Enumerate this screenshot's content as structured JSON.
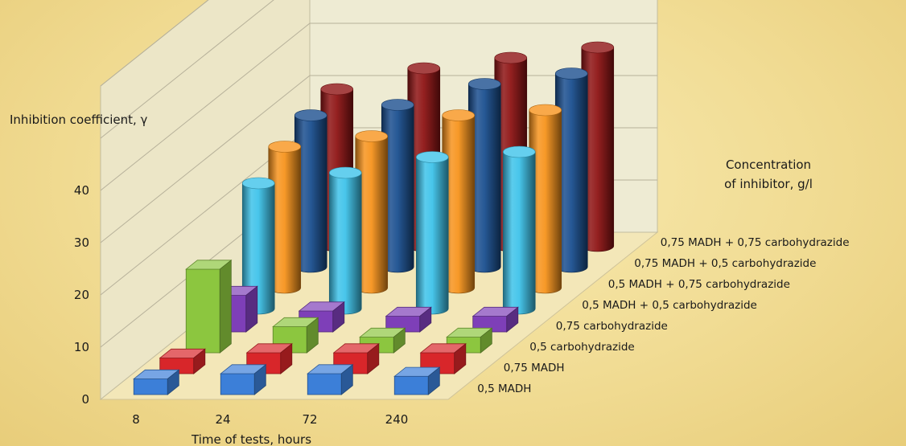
{
  "chart_data": {
    "type": "bar3d",
    "ylabel": "Inhibition coefficient, γ",
    "xlabel": "Time of tests, hours",
    "zlabel_line1": "Concentration",
    "zlabel_line2": "of inhibitor, g/l",
    "ylim": [
      0,
      40
    ],
    "yticks": [
      "0",
      "10",
      "20",
      "30",
      "40"
    ],
    "categories": [
      "8",
      "24",
      "72",
      "240"
    ],
    "series": [
      {
        "name": "0,5 MADH",
        "color": "#3c7fd8",
        "shape": "box",
        "values": [
          3,
          4,
          4,
          3.5
        ]
      },
      {
        "name": "0,75 MADH",
        "color": "#d8262a",
        "shape": "box",
        "values": [
          3,
          4,
          4,
          4
        ]
      },
      {
        "name": "0,5 carbohydrazide",
        "color": "#8cc63f",
        "shape": "box",
        "values": [
          16,
          5,
          3,
          3
        ]
      },
      {
        "name": "0,75 carbohydrazide",
        "color": "#7e3fb8",
        "shape": "box",
        "values": [
          7,
          4,
          3,
          3
        ]
      },
      {
        "name": "0,5 MADH + 0,5 carbohydrazide",
        "color": "#3ec3ea",
        "shape": "cylinder",
        "values": [
          24,
          26,
          29,
          30
        ]
      },
      {
        "name": "0,5 MADH + 0,75 carbohydrazide",
        "color": "#f7941d",
        "shape": "cylinder",
        "values": [
          27,
          29,
          33,
          34
        ]
      },
      {
        "name": "0,75 MADH + 0,5 carbohydrazide",
        "color": "#1b4f8f",
        "shape": "cylinder",
        "values": [
          29,
          31,
          35,
          37
        ]
      },
      {
        "name": "0,75 MADH + 0,75 carbohydrazide",
        "color": "#8e1414",
        "shape": "cylinder",
        "values": [
          30,
          34,
          36,
          38
        ]
      }
    ]
  }
}
